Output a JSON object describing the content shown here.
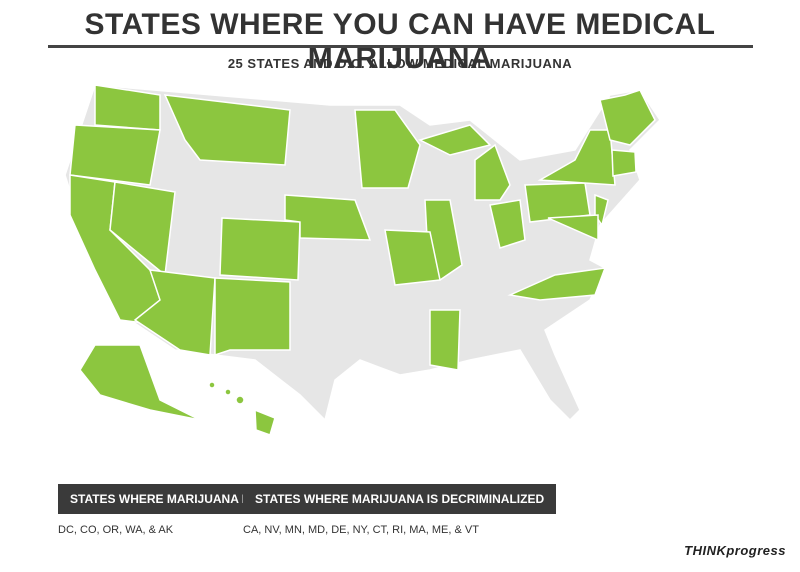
{
  "header": {
    "title": "STATES WHERE YOU CAN HAVE MEDICAL MARIJUANA",
    "subtitle": "25 STATES AND D.C. ALLOW MEDICAL MARIJUANA"
  },
  "legend": [
    {
      "heading": "STATES WHERE MARIJUANA IS LEGAL",
      "states": "DC, CO, OR, WA, & AK"
    },
    {
      "heading": "STATES WHERE MARIJUANA IS DECRIMINALIZED",
      "states": "CA, NV, MN, MD, DE, NY, CT, RI, MA, ME, & VT"
    }
  ],
  "footer": {
    "logo": "THINKprogress"
  }
}
